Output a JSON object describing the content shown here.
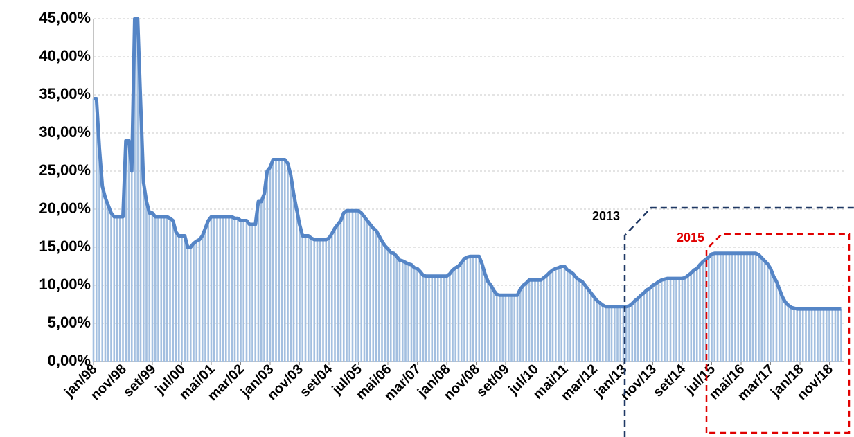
{
  "chart_data": {
    "type": "bar_line",
    "categories": [
      "jan/98",
      null,
      null,
      null,
      null,
      null,
      null,
      null,
      null,
      null,
      "nov/98",
      null,
      null,
      null,
      null,
      null,
      null,
      null,
      null,
      null,
      "set/99",
      null,
      null,
      null,
      null,
      null,
      null,
      null,
      null,
      null,
      "jul/00",
      null,
      null,
      null,
      null,
      null,
      null,
      null,
      null,
      null,
      "mai/01",
      null,
      null,
      null,
      null,
      null,
      null,
      null,
      null,
      null,
      "mar/02",
      null,
      null,
      null,
      null,
      null,
      null,
      null,
      null,
      null,
      "jan/03",
      null,
      null,
      null,
      null,
      null,
      null,
      null,
      null,
      null,
      "nov/03",
      null,
      null,
      null,
      null,
      null,
      null,
      null,
      null,
      null,
      "set/04",
      null,
      null,
      null,
      null,
      null,
      null,
      null,
      null,
      null,
      "jul/05",
      null,
      null,
      null,
      null,
      null,
      null,
      null,
      null,
      null,
      "mai/06",
      null,
      null,
      null,
      null,
      null,
      null,
      null,
      null,
      null,
      "mar/07",
      null,
      null,
      null,
      null,
      null,
      null,
      null,
      null,
      null,
      "jan/08",
      null,
      null,
      null,
      null,
      null,
      null,
      null,
      null,
      null,
      "nov/08",
      null,
      null,
      null,
      null,
      null,
      null,
      null,
      null,
      null,
      "set/09",
      null,
      null,
      null,
      null,
      null,
      null,
      null,
      null,
      null,
      "jul/10",
      null,
      null,
      null,
      null,
      null,
      null,
      null,
      null,
      null,
      "mai/11",
      null,
      null,
      null,
      null,
      null,
      null,
      null,
      null,
      null,
      "mar/12",
      null,
      null,
      null,
      null,
      null,
      null,
      null,
      null,
      null,
      "jan/13",
      null,
      null,
      null,
      null,
      null,
      null,
      null,
      null,
      null,
      "nov/13",
      null,
      null,
      null,
      null,
      null,
      null,
      null,
      null,
      null,
      "set/14",
      null,
      null,
      null,
      null,
      null,
      null,
      null,
      null,
      null,
      "jul/15",
      null,
      null,
      null,
      null,
      null,
      null,
      null,
      null,
      null,
      "mai/16",
      null,
      null,
      null,
      null,
      null,
      null,
      null,
      null,
      null,
      "mar/17",
      null,
      null,
      null,
      null,
      null,
      null,
      null,
      null,
      null,
      "jan/18",
      null,
      null,
      null,
      null,
      null,
      null,
      null,
      null,
      null,
      "nov/18",
      null,
      null,
      null,
      null
    ],
    "values": [
      34.5,
      34.5,
      28,
      23,
      21.5,
      20.5,
      19.5,
      19,
      19,
      19,
      19,
      29,
      29,
      25,
      45,
      45,
      34,
      23.5,
      21,
      19.5,
      19.5,
      19,
      19,
      19,
      19,
      19,
      18.8,
      18.5,
      17,
      16.5,
      16.5,
      16.5,
      15,
      15,
      15.5,
      15.8,
      16,
      16.5,
      17.5,
      18.5,
      19,
      19,
      19,
      19,
      19,
      19,
      19,
      19,
      18.8,
      18.8,
      18.5,
      18.5,
      18.5,
      18,
      18,
      18,
      21,
      21,
      22,
      25,
      25.5,
      26.5,
      26.5,
      26.5,
      26.5,
      26.5,
      26,
      24.5,
      22,
      20,
      18,
      16.5,
      16.5,
      16.5,
      16.2,
      16,
      16,
      16,
      16,
      16,
      16.2,
      16.8,
      17.5,
      18,
      18.5,
      19.5,
      19.8,
      19.8,
      19.8,
      19.8,
      19.8,
      19.5,
      19,
      18.5,
      18,
      17.5,
      17.2,
      16.5,
      15.8,
      15.2,
      14.8,
      14.3,
      14.2,
      13.8,
      13.3,
      13.2,
      13,
      12.8,
      12.7,
      12.3,
      12.2,
      11.8,
      11.3,
      11.2,
      11.2,
      11.2,
      11.2,
      11.2,
      11.2,
      11.2,
      11.2,
      11.5,
      12,
      12.3,
      12.5,
      13,
      13.5,
      13.7,
      13.8,
      13.8,
      13.8,
      13.8,
      12.8,
      11.5,
      10.5,
      10,
      9.3,
      8.8,
      8.7,
      8.7,
      8.7,
      8.7,
      8.7,
      8.7,
      8.7,
      9.5,
      10,
      10.3,
      10.7,
      10.7,
      10.7,
      10.7,
      10.7,
      11,
      11.3,
      11.7,
      12,
      12.2,
      12.3,
      12.5,
      12.5,
      12,
      11.8,
      11.5,
      11,
      10.7,
      10.5,
      10,
      9.5,
      9,
      8.5,
      8,
      7.7,
      7.4,
      7.2,
      7.2,
      7.2,
      7.2,
      7.2,
      7.2,
      7.2,
      7.2,
      7.3,
      7.6,
      8,
      8.3,
      8.7,
      9,
      9.4,
      9.6,
      10,
      10.2,
      10.5,
      10.7,
      10.8,
      10.9,
      10.9,
      10.9,
      10.9,
      10.9,
      10.9,
      11,
      11.3,
      11.6,
      12,
      12.2,
      12.7,
      13.1,
      13.4,
      13.7,
      14.1,
      14.2,
      14.2,
      14.2,
      14.2,
      14.2,
      14.2,
      14.2,
      14.2,
      14.2,
      14.2,
      14.2,
      14.2,
      14.2,
      14.2,
      14.2,
      14,
      13.6,
      13.2,
      12.8,
      12.2,
      11.2,
      10.5,
      9.5,
      8.5,
      7.8,
      7.4,
      7.1,
      7,
      6.9,
      6.9,
      6.9,
      6.9,
      6.9,
      6.9,
      6.9,
      6.9,
      6.9,
      6.9,
      6.9,
      6.9,
      6.9,
      6.9,
      6.9,
      6.9
    ],
    "bar_color": "#a3bfe0",
    "line_color": "#5585c6",
    "ylim": [
      0,
      45
    ],
    "yticks": [
      {
        "value": 0,
        "label": "0,00%"
      },
      {
        "value": 5,
        "label": "5,00%"
      },
      {
        "value": 10,
        "label": "10,00%"
      },
      {
        "value": 15,
        "label": "15,00%"
      },
      {
        "value": 20,
        "label": "20,00%"
      },
      {
        "value": 25,
        "label": "25,00%"
      },
      {
        "value": 30,
        "label": "30,00%"
      },
      {
        "value": 35,
        "label": "35,00%"
      },
      {
        "value": 40,
        "label": "40,00%"
      },
      {
        "value": 45,
        "label": "45,00%"
      }
    ],
    "grid": true,
    "annotations": [
      "2013",
      "2015"
    ]
  }
}
